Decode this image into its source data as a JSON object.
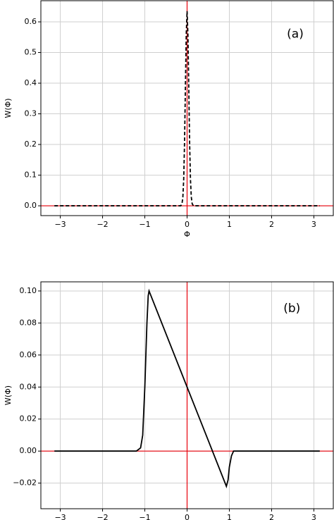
{
  "chart_data": [
    {
      "type": "line",
      "xlabel": "Φ",
      "ylabel": "W(Φ)",
      "annotation": "(a)",
      "annotation_x": 2.56,
      "annotation_y": 0.56,
      "x": [
        -3.14,
        -0.2,
        -0.15,
        -0.12,
        -0.1,
        -0.08,
        -0.06,
        -0.04,
        -0.02,
        0,
        0.02,
        0.04,
        0.06,
        0.08,
        0.1,
        0.12,
        0.15,
        0.2,
        3.14
      ],
      "values": [
        0,
        0,
        0,
        0.007,
        0.028,
        0.086,
        0.206,
        0.385,
        0.56,
        0.635,
        0.56,
        0.385,
        0.206,
        0.086,
        0.028,
        0.007,
        0,
        0,
        0
      ],
      "color": "#000000",
      "dashed": true,
      "xlim": [
        -3.46,
        3.46
      ],
      "ylim": [
        -0.032,
        0.669
      ],
      "xticks": [
        {
          "value": -3,
          "label": "−3"
        },
        {
          "value": -2,
          "label": "−2"
        },
        {
          "value": -1,
          "label": "−1"
        },
        0,
        1,
        2,
        3
      ],
      "yticks": [
        {
          "value": 0,
          "label": "0.0"
        },
        0.1,
        0.2,
        0.3,
        0.4,
        0.5,
        0.6
      ],
      "grid": true,
      "axvline": 0,
      "axhline": 0,
      "ref_color": "#e8000b"
    },
    {
      "type": "line",
      "xlabel": "Φ",
      "ylabel": "W(Φ)",
      "annotation": "(b)",
      "annotation_x": 2.48,
      "annotation_y": 0.089,
      "x": [
        -3.14,
        -1.2,
        -1.1,
        -1.05,
        -1.0,
        -0.95,
        -0.92,
        -0.9,
        0,
        0.5,
        0.9,
        0.93,
        0.97,
        1.0,
        1.05,
        1.1,
        3.14
      ],
      "values": [
        0,
        0,
        0.002,
        0.01,
        0.04,
        0.08,
        0.097,
        0.1,
        0.04,
        0.0067,
        -0.02,
        -0.022,
        -0.018,
        -0.01,
        -0.003,
        0,
        0
      ],
      "color": "#000000",
      "dashed": false,
      "xlim": [
        -3.46,
        3.46
      ],
      "ylim": [
        -0.036,
        0.1057
      ],
      "xticks": [
        {
          "value": -3,
          "label": "−3"
        },
        {
          "value": -2,
          "label": "−2"
        },
        {
          "value": -1,
          "label": "−1"
        },
        0,
        1,
        2,
        3
      ],
      "yticks": [
        {
          "value": -0.02,
          "label": "−0.02"
        },
        {
          "value": 0,
          "label": "0.00"
        },
        0.02,
        0.04,
        0.06,
        0.08,
        {
          "value": 0.1,
          "label": "0.10"
        }
      ],
      "grid": true,
      "axvline": 0,
      "axhline": 0,
      "ref_color": "#e8000b"
    }
  ]
}
